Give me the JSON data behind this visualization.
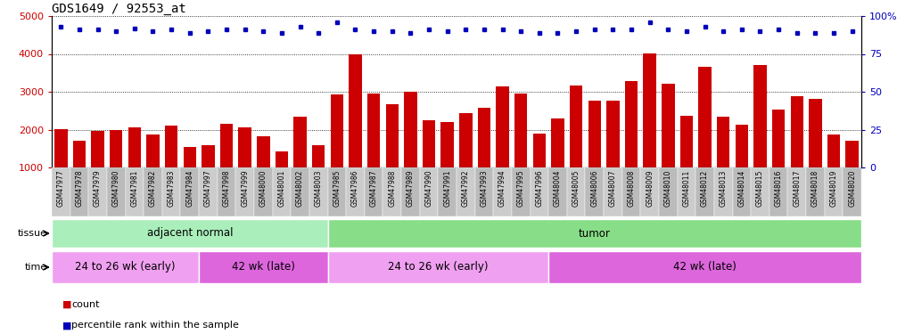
{
  "title": "GDS1649 / 92553_at",
  "categories": [
    "GSM47977",
    "GSM47978",
    "GSM47979",
    "GSM47980",
    "GSM47981",
    "GSM47982",
    "GSM47983",
    "GSM47984",
    "GSM47997",
    "GSM47998",
    "GSM47999",
    "GSM48000",
    "GSM48001",
    "GSM48002",
    "GSM48003",
    "GSM47985",
    "GSM47986",
    "GSM47987",
    "GSM47988",
    "GSM47989",
    "GSM47990",
    "GSM47991",
    "GSM47992",
    "GSM47993",
    "GSM47994",
    "GSM47995",
    "GSM47996",
    "GSM48004",
    "GSM48005",
    "GSM48006",
    "GSM48007",
    "GSM48008",
    "GSM48009",
    "GSM48010",
    "GSM48011",
    "GSM48012",
    "GSM48013",
    "GSM48014",
    "GSM48015",
    "GSM48016",
    "GSM48017",
    "GSM48018",
    "GSM48019",
    "GSM48020"
  ],
  "bar_values": [
    2010,
    1700,
    1960,
    2000,
    2060,
    1860,
    2110,
    1540,
    1600,
    2150,
    2050,
    1820,
    1420,
    2340,
    1600,
    2930,
    3980,
    2960,
    2660,
    2990,
    2250,
    2200,
    2430,
    2570,
    3140,
    2960,
    1890,
    2300,
    3170,
    2760,
    2760,
    3290,
    4010,
    3210,
    2360,
    3660,
    2340,
    2120,
    3700,
    2530,
    2880,
    2800,
    1880,
    1710
  ],
  "percentile_values": [
    93,
    91,
    91,
    90,
    92,
    90,
    91,
    89,
    90,
    91,
    91,
    90,
    89,
    93,
    89,
    96,
    91,
    90,
    90,
    89,
    91,
    90,
    91,
    91,
    91,
    90,
    89,
    89,
    90,
    91,
    91,
    91,
    96,
    91,
    90,
    93,
    90,
    91,
    90,
    91,
    89,
    89,
    89,
    90
  ],
  "bar_color": "#cc0000",
  "percentile_color": "#0000bb",
  "ylim_left": [
    1000,
    5000
  ],
  "ylim_right": [
    0,
    100
  ],
  "yticks_left": [
    1000,
    2000,
    3000,
    4000,
    5000
  ],
  "yticks_right": [
    0,
    25,
    50,
    75,
    100
  ],
  "grid_values": [
    2000,
    3000,
    4000
  ],
  "tissue_groups": [
    {
      "label": "adjacent normal",
      "start": 0,
      "end": 15,
      "color": "#aaeebb"
    },
    {
      "label": "tumor",
      "start": 15,
      "end": 44,
      "color": "#88dd88"
    }
  ],
  "time_groups": [
    {
      "label": "24 to 26 wk (early)",
      "start": 0,
      "end": 8,
      "color": "#f0a0f0"
    },
    {
      "label": "42 wk (late)",
      "start": 8,
      "end": 15,
      "color": "#dd66dd"
    },
    {
      "label": "24 to 26 wk (early)",
      "start": 15,
      "end": 27,
      "color": "#f0a0f0"
    },
    {
      "label": "42 wk (late)",
      "start": 27,
      "end": 44,
      "color": "#dd66dd"
    }
  ],
  "legend_items": [
    {
      "label": "count",
      "color": "#cc0000"
    },
    {
      "label": "percentile rank within the sample",
      "color": "#0000bb"
    }
  ],
  "bg_color": "#ffffff",
  "bar_width": 0.7,
  "left_label_color": "#cc0000",
  "right_label_color": "#0000bb"
}
